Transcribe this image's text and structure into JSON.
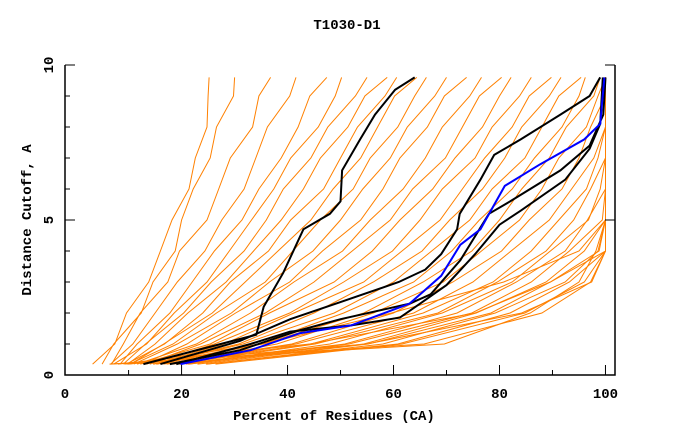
{
  "chart_data": {
    "type": "line",
    "title": "T1030-D1",
    "xlabel": "Percent of Residues (CA)",
    "ylabel": "Distance Cutoff, A",
    "xlim": [
      -2,
      101.8
    ],
    "ylim": [
      0,
      10
    ],
    "xticks": [
      0,
      20,
      40,
      60,
      80,
      100
    ],
    "xminor": [
      10,
      30,
      50,
      70,
      90
    ],
    "yticks": [
      0,
      5,
      10
    ],
    "yminor": [
      1,
      2,
      3,
      4,
      6,
      7,
      8,
      9
    ],
    "grid": false,
    "colors": {
      "orange": "#ff8000",
      "black": "#000000",
      "blue": "#0000ff"
    },
    "orange_levels_y": [
      0.35,
      1,
      2,
      3,
      4,
      5,
      6,
      7,
      8,
      9,
      9.6
    ],
    "orange_series_x": [
      [
        4,
        7,
        10,
        13,
        16,
        19,
        21,
        23,
        24,
        25,
        26
      ],
      [
        5,
        8,
        12,
        15,
        18,
        20,
        23,
        25,
        27,
        29,
        30
      ],
      [
        6,
        9,
        13,
        17,
        20,
        24,
        27,
        30,
        33,
        35,
        36
      ],
      [
        7,
        10,
        15,
        20,
        24,
        28,
        31,
        34,
        37,
        40,
        42
      ],
      [
        8,
        12,
        17,
        22,
        27,
        31,
        35,
        38,
        42,
        45,
        47
      ],
      [
        8,
        13,
        19,
        24,
        29,
        34,
        37,
        41,
        45,
        49,
        51
      ],
      [
        9,
        14,
        20,
        26,
        31,
        36,
        40,
        44,
        48,
        52,
        55
      ],
      [
        9,
        15,
        22,
        28,
        34,
        38,
        43,
        47,
        51,
        55,
        58
      ],
      [
        10,
        16,
        24,
        30,
        36,
        41,
        46,
        50,
        54,
        58,
        61
      ],
      [
        10,
        17,
        25,
        32,
        39,
        44,
        49,
        53,
        57,
        61,
        64
      ],
      [
        11,
        18,
        27,
        35,
        41,
        47,
        52,
        56,
        60,
        64,
        67
      ],
      [
        11,
        20,
        29,
        37,
        44,
        50,
        55,
        59,
        63,
        67,
        70
      ],
      [
        12,
        21,
        31,
        40,
        47,
        53,
        58,
        62,
        66,
        70,
        73
      ],
      [
        12,
        22,
        33,
        42,
        50,
        56,
        61,
        66,
        70,
        74,
        77
      ],
      [
        13,
        24,
        35,
        45,
        53,
        59,
        64,
        69,
        73,
        77,
        80
      ],
      [
        13,
        25,
        37,
        48,
        56,
        62,
        67,
        72,
        76,
        80,
        83
      ],
      [
        14,
        27,
        40,
        51,
        59,
        65,
        70,
        75,
        79,
        83,
        86
      ],
      [
        14,
        28,
        42,
        54,
        62,
        68,
        73,
        78,
        82,
        86,
        89
      ],
      [
        15,
        30,
        45,
        57,
        65,
        71,
        76,
        81,
        85,
        89,
        92
      ],
      [
        15,
        32,
        48,
        60,
        68,
        74,
        79,
        84,
        88,
        92,
        95
      ],
      [
        16,
        34,
        51,
        63,
        71,
        77,
        82,
        87,
        91,
        95,
        97
      ],
      [
        16,
        36,
        54,
        66,
        74,
        80,
        85,
        89,
        93,
        97,
        99
      ],
      [
        17,
        38,
        57,
        69,
        77,
        83,
        88,
        92,
        96,
        99,
        100
      ],
      [
        17,
        40,
        60,
        72,
        80,
        86,
        91,
        95,
        98,
        100,
        100
      ],
      [
        18,
        42,
        63,
        75,
        83,
        89,
        94,
        97,
        100,
        100,
        100
      ],
      [
        18,
        44,
        66,
        78,
        86,
        92,
        96,
        99,
        100,
        100,
        100
      ],
      [
        19,
        46,
        68,
        80,
        88,
        94,
        98,
        100,
        100,
        100,
        100
      ],
      [
        20,
        48,
        70,
        82,
        90,
        96,
        99,
        100,
        100,
        100,
        100
      ],
      [
        20,
        50,
        72,
        84,
        92,
        97,
        100,
        100,
        100,
        100,
        100
      ],
      [
        21,
        52,
        74,
        86,
        94,
        99,
        100,
        100,
        100,
        100,
        100
      ],
      [
        22,
        54,
        76,
        88,
        96,
        100,
        100,
        100,
        100,
        100,
        100
      ],
      [
        23,
        56,
        78,
        90,
        98,
        100,
        100,
        100,
        100,
        100,
        100
      ],
      [
        24,
        58,
        80,
        92,
        99,
        100,
        100,
        100,
        100,
        100,
        100
      ],
      [
        25,
        60,
        82,
        94,
        100,
        100,
        100,
        100,
        100,
        100,
        100
      ],
      [
        26,
        62,
        84,
        96,
        100,
        100,
        100,
        100,
        100,
        100,
        100
      ],
      [
        10,
        35,
        60,
        80,
        95,
        100,
        100,
        100,
        100,
        100,
        100
      ],
      [
        8,
        45,
        75,
        90,
        100,
        100,
        100,
        100,
        100,
        100,
        100
      ],
      [
        9,
        55,
        85,
        97,
        100,
        100,
        100,
        100,
        100,
        100,
        100
      ],
      [
        7,
        65,
        88,
        98,
        100,
        100,
        100,
        100,
        100,
        100,
        100
      ],
      [
        6,
        70,
        85,
        95,
        99,
        100,
        100,
        100,
        100,
        100,
        100
      ]
    ],
    "highlight_series": [
      {
        "color": "#000000",
        "points": [
          [
            12.8,
            0.35
          ],
          [
            34.1,
            1.3
          ],
          [
            35.5,
            2.2
          ],
          [
            39.2,
            3.3
          ],
          [
            43,
            4.7
          ],
          [
            48,
            5.2
          ],
          [
            50,
            5.6
          ],
          [
            50.3,
            6.6
          ],
          [
            53.7,
            7.6
          ],
          [
            56.5,
            8.4
          ],
          [
            60.3,
            9.2
          ],
          [
            64,
            9.6
          ]
        ]
      },
      {
        "color": "#000000",
        "points": [
          [
            16,
            0.35
          ],
          [
            31,
            1.1
          ],
          [
            40.5,
            1.8
          ],
          [
            50,
            2.35
          ],
          [
            61,
            3
          ],
          [
            66,
            3.4
          ],
          [
            69,
            3.9
          ],
          [
            72,
            4.7
          ],
          [
            72.5,
            5.2
          ],
          [
            76.4,
            6.3
          ],
          [
            79,
            7.1
          ],
          [
            84,
            7.6
          ],
          [
            91.5,
            8.4
          ],
          [
            97,
            9
          ],
          [
            99,
            9.6
          ]
        ]
      },
      {
        "color": "#000000",
        "points": [
          [
            17.8,
            0.35
          ],
          [
            31,
            0.8
          ],
          [
            42.4,
            1.45
          ],
          [
            50,
            1.8
          ],
          [
            63,
            2.3
          ],
          [
            67,
            2.6
          ],
          [
            72.6,
            3.7
          ],
          [
            78,
            5.2
          ],
          [
            82,
            5.6
          ],
          [
            91.5,
            6.6
          ],
          [
            97,
            7.4
          ],
          [
            99.6,
            8.4
          ],
          [
            100,
            9.6
          ]
        ]
      },
      {
        "color": "#000000",
        "points": [
          [
            19,
            0.35
          ],
          [
            33,
            1
          ],
          [
            40.5,
            1.4
          ],
          [
            52,
            1.6
          ],
          [
            61.2,
            1.85
          ],
          [
            65,
            2.3
          ],
          [
            70,
            2.9
          ],
          [
            75.4,
            3.9
          ],
          [
            80,
            4.85
          ],
          [
            84,
            5.3
          ],
          [
            92.4,
            6.3
          ],
          [
            97,
            7.3
          ],
          [
            99,
            8.1
          ],
          [
            99.5,
            9.6
          ]
        ]
      },
      {
        "color": "#0000ff",
        "points": [
          [
            19.8,
            0.35
          ],
          [
            33,
            0.8
          ],
          [
            42.4,
            1.35
          ],
          [
            52,
            1.6
          ],
          [
            63,
            2.3
          ],
          [
            69,
            3.2
          ],
          [
            72.6,
            4.2
          ],
          [
            76.4,
            4.7
          ],
          [
            81,
            6.1
          ],
          [
            87.7,
            6.8
          ],
          [
            96,
            7.6
          ],
          [
            99,
            8.1
          ],
          [
            99.8,
            9.6
          ]
        ]
      }
    ]
  }
}
